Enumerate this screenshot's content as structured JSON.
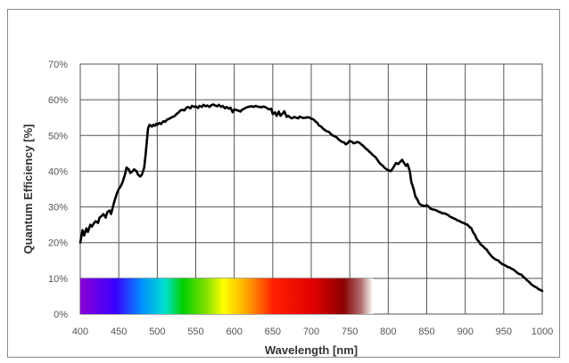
{
  "chart_data": {
    "type": "line",
    "title": "",
    "xlabel": "Wavelength [nm]",
    "ylabel": "Quantum Efficiency [%]",
    "xlim": [
      400,
      1000
    ],
    "ylim": [
      0,
      70
    ],
    "grid": true,
    "x_ticks": [
      "400",
      "450",
      "500",
      "550",
      "600",
      "650",
      "700",
      "750",
      "800",
      "850",
      "900",
      "950",
      "1000"
    ],
    "y_ticks": [
      "0%",
      "10%",
      "20%",
      "30%",
      "40%",
      "50%",
      "60%",
      "70%"
    ],
    "visible_spectrum_band": {
      "from_nm": 400,
      "to_nm": 780,
      "y_from": 0,
      "y_to": 10
    },
    "series_color": "#000000",
    "series": [
      {
        "x": [
          400,
          403,
          405,
          408,
          410,
          413,
          415,
          418,
          420,
          423,
          425,
          428,
          430,
          433,
          435,
          438,
          440,
          443,
          445,
          448,
          450,
          453,
          455,
          458,
          460,
          463,
          465,
          468,
          470,
          473,
          475,
          478,
          480,
          483,
          485,
          488,
          490,
          493,
          495,
          497,
          499,
          500,
          503,
          505,
          508,
          510,
          513,
          515,
          518,
          520,
          523,
          525,
          528,
          530,
          533,
          535,
          538,
          540,
          543,
          545,
          548,
          550,
          553,
          555,
          558,
          560,
          563,
          565,
          568,
          570,
          573,
          575,
          578,
          580,
          583,
          585,
          588,
          590,
          593,
          595,
          598,
          600,
          603,
          605,
          608,
          610,
          613,
          615,
          618,
          620,
          623,
          625,
          628,
          630,
          633,
          635,
          638,
          640,
          643,
          645,
          648,
          650,
          653,
          655,
          658,
          660,
          663,
          665,
          668,
          670,
          673,
          675,
          678,
          680,
          683,
          685,
          688,
          690,
          693,
          695,
          698,
          700,
          703,
          705,
          708,
          710,
          713,
          715,
          718,
          720,
          723,
          725,
          728,
          730,
          733,
          735,
          738,
          740,
          743,
          745,
          748,
          750,
          753,
          755,
          758,
          760,
          763,
          765,
          768,
          770,
          773,
          775,
          778,
          780,
          783,
          785,
          788,
          790,
          793,
          795,
          798,
          800,
          803,
          805,
          808,
          810,
          813,
          815,
          818,
          820,
          823,
          825,
          828,
          830,
          833,
          835,
          838,
          840,
          843,
          845,
          848,
          850,
          853,
          855,
          858,
          860,
          863,
          865,
          868,
          870,
          873,
          875,
          878,
          880,
          883,
          885,
          888,
          890,
          893,
          895,
          898,
          900,
          903,
          905,
          908,
          910,
          913,
          915,
          918,
          920,
          923,
          925,
          928,
          930,
          933,
          935,
          938,
          940,
          943,
          945,
          948,
          950,
          953,
          955,
          958,
          960,
          963,
          965,
          968,
          970,
          973,
          975,
          978,
          980,
          983,
          985,
          988,
          990,
          993,
          995,
          998,
          1000
        ],
        "y": [
          20,
          23.5,
          22,
          24,
          23,
          25,
          24.5,
          25.5,
          26,
          25.5,
          27,
          27.5,
          28,
          27,
          28.5,
          29,
          28,
          30.5,
          32,
          34,
          35,
          36,
          37,
          39,
          41,
          40.5,
          39.5,
          40,
          40.5,
          40,
          39,
          38.5,
          39,
          41,
          45,
          52,
          53,
          52.5,
          53,
          52.7,
          53.3,
          53,
          53.5,
          53.2,
          54,
          53.8,
          54.5,
          54.6,
          55,
          55.2,
          55.5,
          56,
          56.5,
          57,
          57.2,
          57,
          57.8,
          58,
          57.6,
          58.3,
          58,
          58.2,
          57.7,
          58.3,
          58,
          58.6,
          58.2,
          58.4,
          58,
          58.5,
          58.7,
          58.4,
          58.2,
          58.6,
          58,
          58.3,
          57.6,
          58,
          57.5,
          57.8,
          56.5,
          57.3,
          57.1,
          57,
          56.7,
          57.2,
          57.5,
          57.8,
          58,
          58.1,
          58.2,
          58,
          58.3,
          58.1,
          58,
          57.9,
          58.1,
          58,
          57.6,
          57.3,
          57.5,
          56,
          56.5,
          55.5,
          56.7,
          55.5,
          56.2,
          56.8,
          55.2,
          55.5,
          55,
          54.8,
          55.2,
          55,
          54.8,
          55.3,
          55,
          54.9,
          55,
          55.1,
          55,
          54.7,
          54.5,
          54,
          53.5,
          52.8,
          52.5,
          52,
          51.5,
          51.2,
          51,
          50.5,
          50,
          49.8,
          49.5,
          49,
          48.5,
          48.2,
          48,
          47.5,
          48,
          48.5,
          48.2,
          47.8,
          48,
          48.2,
          47.9,
          47.5,
          47,
          46.5,
          46,
          45.5,
          45,
          44.5,
          44,
          43.5,
          42.5,
          42,
          41.5,
          41,
          40.5,
          40.3,
          40,
          40.5,
          41.5,
          42.3,
          42,
          42.5,
          43.2,
          42.5,
          41.5,
          42,
          40,
          37,
          35,
          33,
          32,
          31,
          30.5,
          30.4,
          30.2,
          30.5,
          30,
          29.5,
          29.3,
          29.2,
          29,
          28.7,
          28.5,
          28.2,
          28.2,
          28,
          27.7,
          27.3,
          27,
          26.8,
          26.5,
          26.2,
          26,
          25.7,
          25.5,
          25.2,
          25,
          24.5,
          24,
          23,
          22,
          21,
          20.2,
          19.5,
          19,
          18.5,
          18,
          17.3,
          16.5,
          16,
          15.5,
          15.2,
          15,
          14.5,
          14,
          13.8,
          13.5,
          13.2,
          13,
          12.7,
          12.4,
          12,
          11.5,
          11.2,
          11,
          10.5,
          10,
          9.5,
          9,
          8.5,
          8,
          7.7,
          7.4,
          7,
          6.7,
          6.5
        ]
      }
    ]
  }
}
